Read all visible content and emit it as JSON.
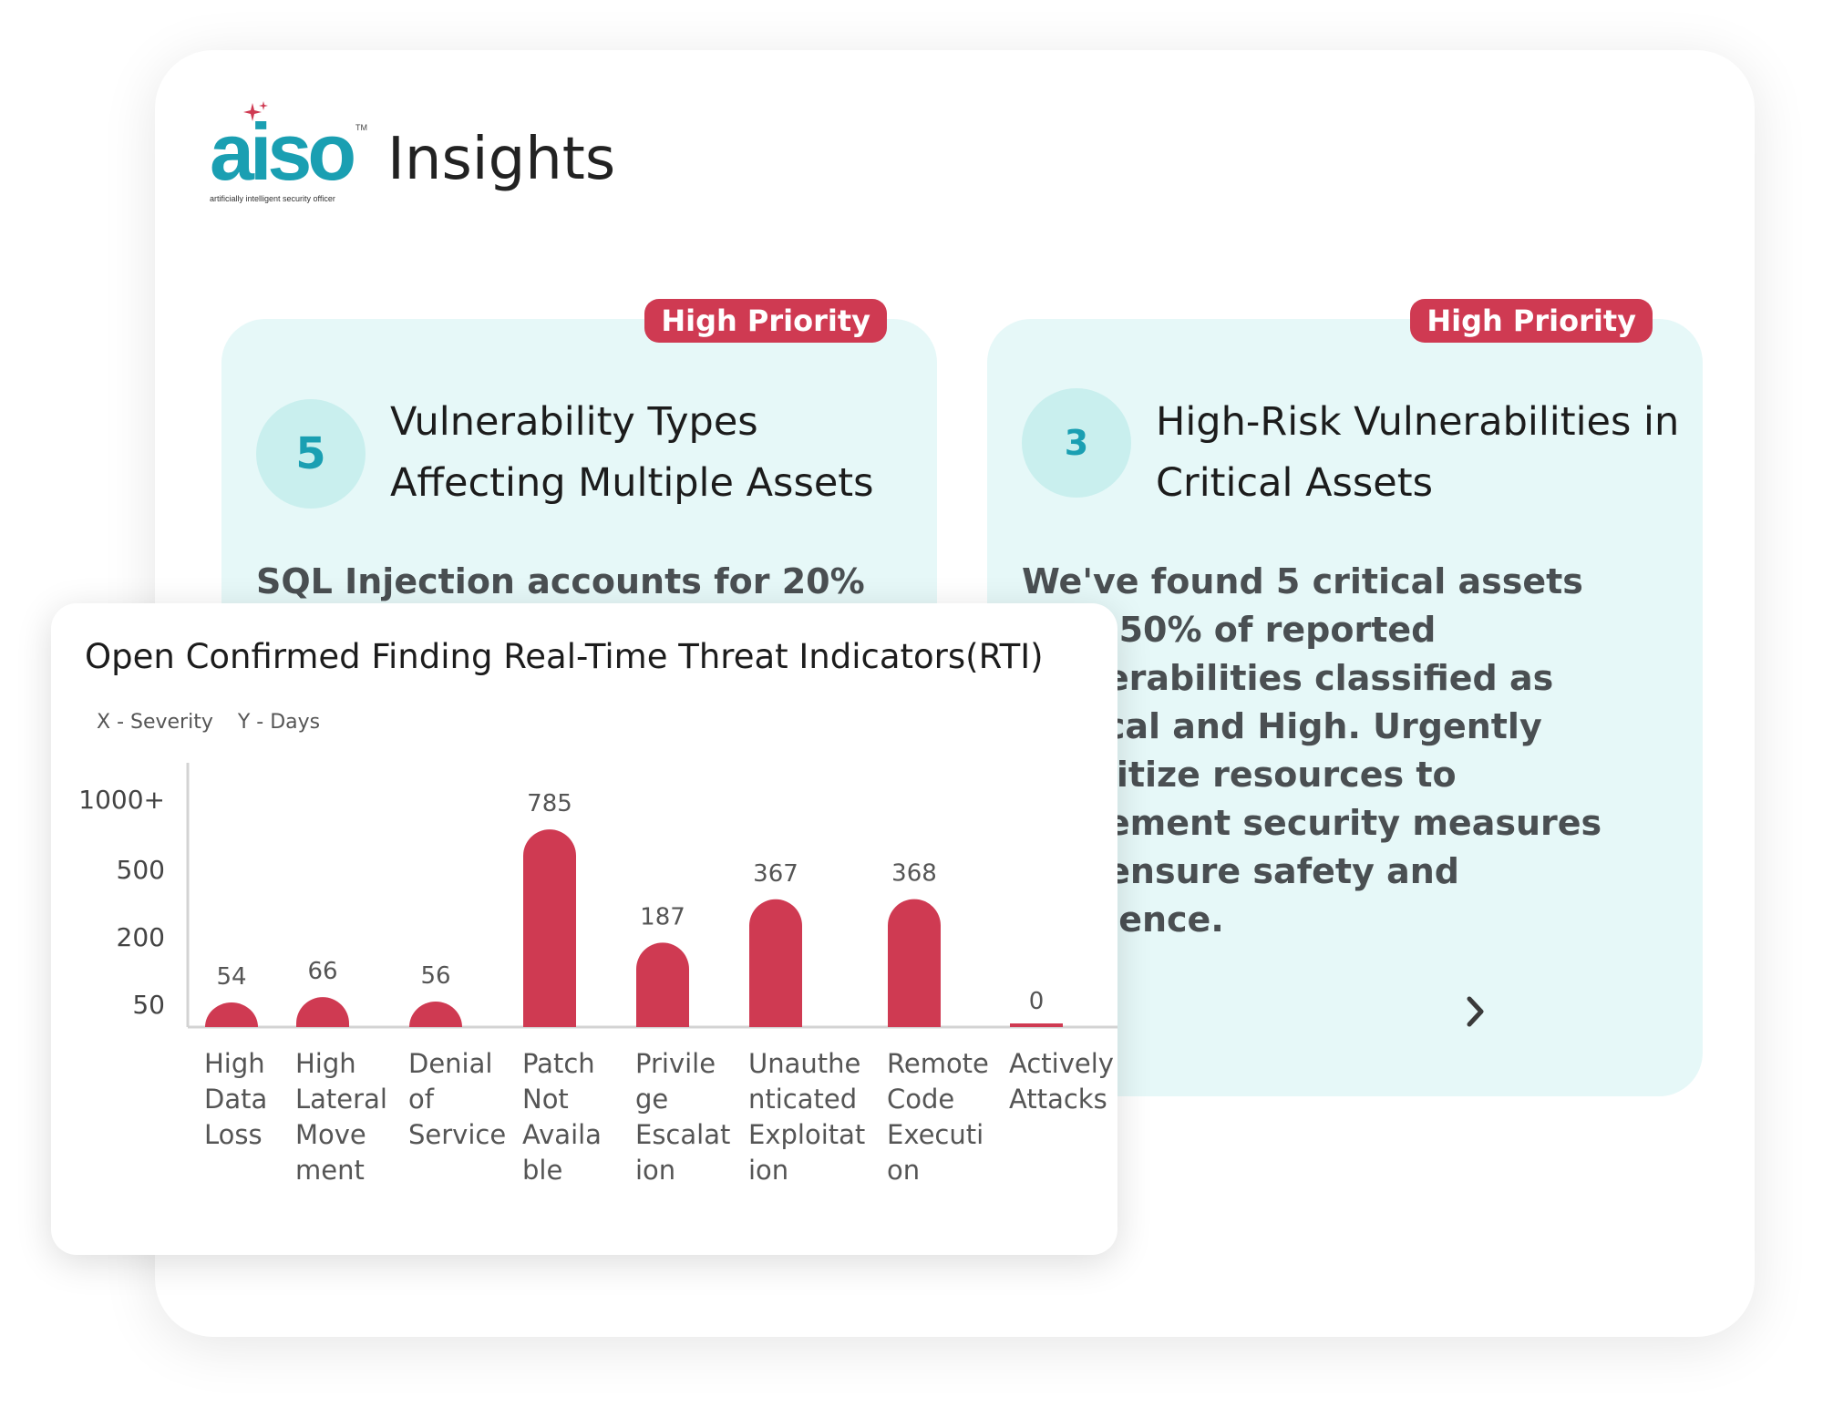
{
  "brand": {
    "logo_text": "aiso",
    "logo_tm": "TM",
    "logo_tagline": "artificially intelligent security officer",
    "page_title": "Insights",
    "accent": "#1a9fb2",
    "alert": "#cf3a52"
  },
  "cards": [
    {
      "badge": "High Priority",
      "count": "5",
      "title": "Vulnerability Types Affecting Multiple Assets",
      "body": "SQL Injection accounts for 20%"
    },
    {
      "badge": "High Priority",
      "count": "3",
      "title": "High-Risk Vulnerabilities in Critical Assets",
      "body": "We've found 5 critical assets with 50% of reported vulnerabilities classified as Critical and High. Urgently prioritize resources to implement security measures and ensure safety and resilience.",
      "next_icon": "chevron-right-icon"
    }
  ],
  "chart_data": {
    "type": "bar",
    "title": "Open Confirmed Finding Real-Time Threat Indicators(RTI)",
    "xlabel": "X - Severity",
    "ylabel": "Y - Days",
    "y_ticks": [
      "1000+",
      "500",
      "200",
      "50"
    ],
    "categories": [
      [
        "High",
        "Data",
        "Loss"
      ],
      [
        "High",
        "Lateral",
        "Move",
        "ment"
      ],
      [
        "Denial",
        "of",
        "Service"
      ],
      [
        "Patch",
        "Not",
        "Availa",
        "ble"
      ],
      [
        "Privile",
        "ge",
        "Escalat",
        "ion"
      ],
      [
        "Unauthe",
        "nticated",
        "Exploitat",
        "ion"
      ],
      [
        "Remote",
        "Code",
        "Executi",
        "on"
      ],
      [
        "Actively",
        "Attacks"
      ]
    ],
    "values": [
      54,
      66,
      56,
      785,
      187,
      367,
      368,
      0
    ],
    "bar_color": "#cf3a52",
    "grid": false
  }
}
